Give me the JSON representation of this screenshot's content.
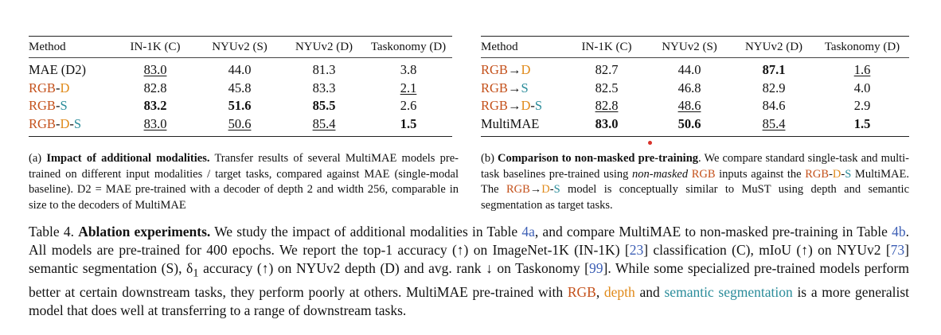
{
  "colors": {
    "rgb": "#c4501a",
    "depth": "#e08a1a",
    "semseg": "#2a8c9a",
    "ref": "#3d5fb5"
  },
  "table_a": {
    "headers": [
      "Method",
      "IN-1K (C)",
      "NYUv2 (S)",
      "NYUv2 (D)",
      "Taskonomy (D)"
    ],
    "rows": [
      {
        "m0": "MAE (D2)",
        "m1": "",
        "m2": "",
        "m3": "",
        "m4": "",
        "v": [
          "83.0",
          "44.0",
          "81.3",
          "3.8"
        ]
      },
      {
        "m0": "RGB",
        "m1": "-",
        "m2": "D",
        "m3": "",
        "m4": "",
        "v": [
          "82.8",
          "45.8",
          "83.3",
          "2.1"
        ]
      },
      {
        "m0": "RGB",
        "m1": "-",
        "m2": "S",
        "m3": "",
        "m4": "",
        "v": [
          "83.2",
          "51.6",
          "85.5",
          "2.6"
        ]
      },
      {
        "m0": "RGB",
        "m1": "-",
        "m2": "D",
        "m3": "-",
        "m4": "S",
        "v": [
          "83.0",
          "50.6",
          "85.4",
          "1.5"
        ]
      }
    ]
  },
  "table_b": {
    "headers": [
      "Method",
      "IN-1K (C)",
      "NYUv2 (S)",
      "NYUv2 (D)",
      "Taskonomy (D)"
    ],
    "rows": [
      {
        "m0": "RGB",
        "m1": "→",
        "m2": "D",
        "m3": "",
        "m4": "",
        "v": [
          "82.7",
          "44.0",
          "87.1",
          "1.6"
        ]
      },
      {
        "m0": "RGB",
        "m1": "→",
        "m2": "S",
        "m3": "",
        "m4": "",
        "v": [
          "82.5",
          "46.8",
          "82.9",
          "4.0"
        ]
      },
      {
        "m0": "RGB",
        "m1": "→",
        "m2": "D",
        "m3": "-",
        "m4": "S",
        "v": [
          "82.8",
          "48.6",
          "84.6",
          "2.9"
        ]
      },
      {
        "m0": "MultiMAE",
        "m1": "",
        "m2": "",
        "m3": "",
        "m4": "",
        "v": [
          "83.0",
          "50.6",
          "85.4",
          "1.5"
        ]
      }
    ]
  },
  "caption_a": {
    "label": "(a)",
    "title": "Impact of additional modalities.",
    "text": "Transfer results of several MultiMAE models pre-trained on different input modalities / target tasks, compared against MAE (single-modal baseline). D2 = MAE pre-trained with a decoder of depth 2 and width 256, comparable in size to the decoders of MultiMAE"
  },
  "caption_b": {
    "label": "(b)",
    "title": "Comparison to non-masked pre-training",
    "t1": ". We compare standard single-task and multi-task baselines pre-trained using ",
    "t2": "non-masked",
    "t3": " ",
    "t4": "RGB",
    "t5": " inputs against the ",
    "t6": "RGB",
    "t7": "-",
    "t8": "D",
    "t9": "-",
    "t10": "S",
    "t11": " MultiMAE. The ",
    "t12": "RGB",
    "t13": "→",
    "t14": "D",
    "t15": "-",
    "t16": "S",
    "t17": " model is conceptually similar to MuST using depth and semantic segmentation as target tasks."
  },
  "main_caption": {
    "p0": "Table 4.",
    "p1": "Ablation experiments.",
    "p2": " We study the impact of additional modalities in Table ",
    "p3": "4a",
    "p4": ", and compare MultiMAE to non-masked pre-training in Table ",
    "p5": "4b",
    "p6": ". All models are pre-trained for 400 epochs. We report the top-1 accuracy (↑) on ImageNet-1K (IN-1K) [",
    "p7": "23",
    "p8": "] classification (C), mIoU (↑) on NYUv2 [",
    "p9": "73",
    "p10": "] semantic segmentation (S), δ",
    "p11": "1",
    "p12": " accuracy (↑) on NYUv2 depth (D) and avg. rank ↓ on Taskonomy [",
    "p13": "99",
    "p14": "]. While some specialized pre-trained models perform better at certain downstream tasks, they perform poorly at others. MultiMAE pre-trained with ",
    "p15": "RGB",
    "p16": ", ",
    "p17": "depth",
    "p18": " and ",
    "p19": "semantic segmentation",
    "p20": " is a more generalist model that does well at transferring to a range of downstream tasks."
  }
}
